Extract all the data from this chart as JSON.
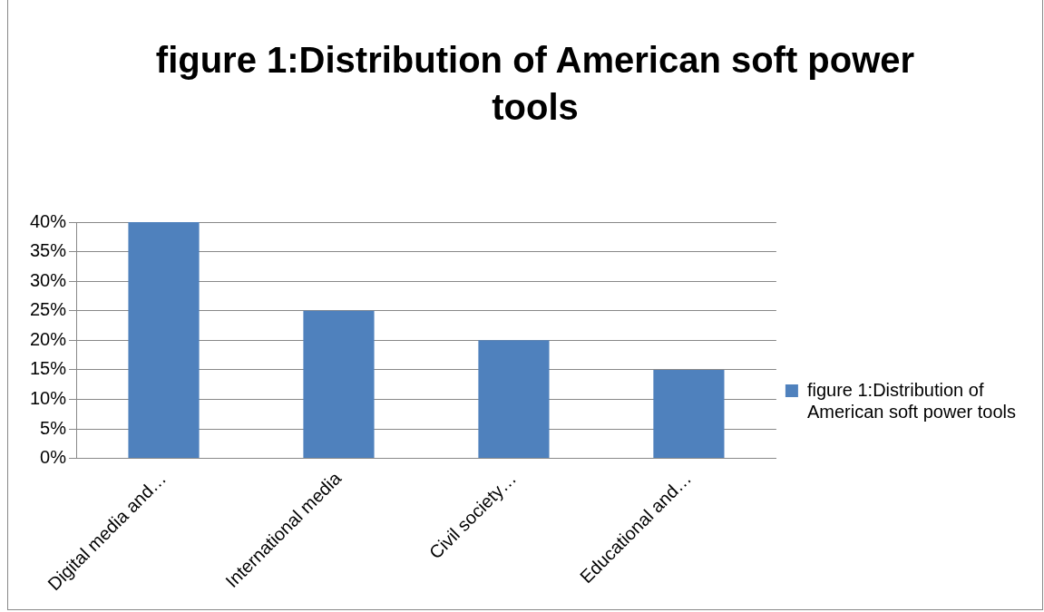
{
  "chart_data": {
    "type": "bar",
    "title": "figure 1:Distribution of American soft power tools",
    "categories": [
      "Digital media and…",
      "International media",
      "Civil society…",
      "Educational and…"
    ],
    "series": [
      {
        "name": "figure 1:Distribution of American soft power tools",
        "color": "#4f81bd",
        "values": [
          40,
          25,
          20,
          15
        ]
      }
    ],
    "ylim": [
      0,
      40
    ],
    "yticks": [
      {
        "value": 0,
        "label": "0%"
      },
      {
        "value": 5,
        "label": "5%"
      },
      {
        "value": 10,
        "label": "10%"
      },
      {
        "value": 15,
        "label": "15%"
      },
      {
        "value": 20,
        "label": "20%"
      },
      {
        "value": 25,
        "label": "25%"
      },
      {
        "value": 30,
        "label": "30%"
      },
      {
        "value": 35,
        "label": "35%"
      },
      {
        "value": 40,
        "label": "40%"
      }
    ],
    "grid": "y",
    "legend": "right"
  }
}
